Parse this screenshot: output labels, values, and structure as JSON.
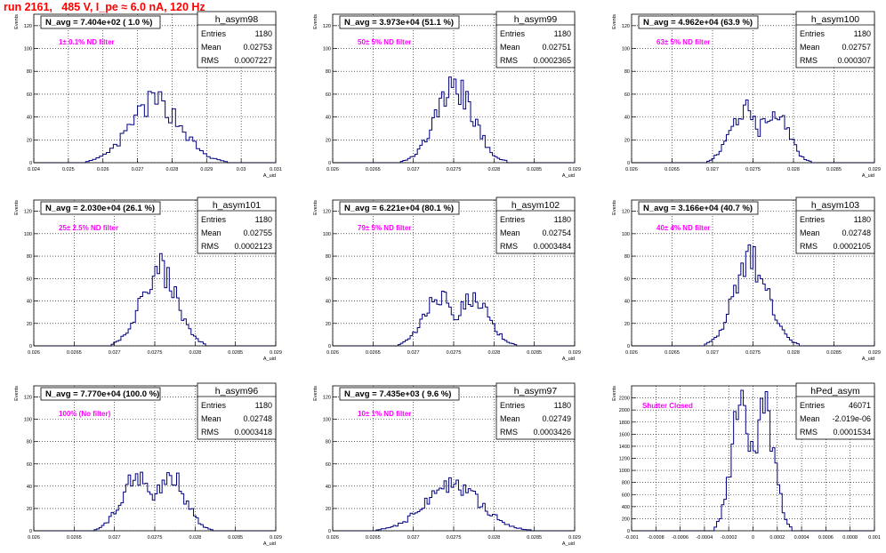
{
  "run_title": "run 2161,   485 V, I_pe ≈ 6.0 nA, 120 Hz",
  "colors": {
    "histogram": "#000080",
    "annotation": "#ff00ff",
    "title": "#ff0000",
    "grid": "#000000"
  },
  "chart_data": [
    {
      "type": "histogram",
      "name": "h_asym98",
      "navg": "N_avg = 7.404e+02 ( 1.0 %)",
      "filter": "1± 0.1% ND filter",
      "stats": [
        [
          "Entries",
          "1180"
        ],
        [
          "Mean",
          "0.02753"
        ],
        [
          "RMS",
          "0.0007227"
        ]
      ],
      "ylabel": "Events",
      "xlabel": "A_uid",
      "xlim": [
        0.024,
        0.031
      ],
      "ylim": [
        0,
        130
      ],
      "yticks": [
        0,
        20,
        40,
        60,
        80,
        100,
        120
      ],
      "xticks": [
        0.024,
        0.025,
        0.026,
        0.027,
        0.028,
        0.029,
        0.03,
        0.031
      ],
      "xtick_labels": [
        "0.024",
        "0.025",
        "0.026",
        "0.027",
        "0.028",
        "0.029",
        "0.03",
        "0.031"
      ],
      "mean": 0.02753,
      "rms": 0.0007227,
      "entries": 1180,
      "peak": 53,
      "bins": 70,
      "shape": "single"
    },
    {
      "type": "histogram",
      "name": "h_asym99",
      "navg": "N_avg = 3.973e+04 (51.1 %)",
      "filter": "50± 5% ND filter",
      "stats": [
        [
          "Entries",
          "1180"
        ],
        [
          "Mean",
          "0.02751"
        ],
        [
          "RMS",
          "0.0002365"
        ]
      ],
      "ylabel": "Events",
      "xlabel": "A_uid",
      "xlim": [
        0.026,
        0.029
      ],
      "ylim": [
        0,
        130
      ],
      "yticks": [
        0,
        20,
        40,
        60,
        80,
        100,
        120
      ],
      "xticks": [
        0.026,
        0.0265,
        0.027,
        0.0275,
        0.028,
        0.0285,
        0.029
      ],
      "xtick_labels": [
        "0.026",
        "0.0265",
        "0.027",
        "0.0275",
        "0.028",
        "0.0285",
        "0.029"
      ],
      "mean": 0.02751,
      "rms": 0.0002365,
      "entries": 1180,
      "peak": 65,
      "bins": 100,
      "shape": "single"
    },
    {
      "type": "histogram",
      "name": "h_asym100",
      "navg": "N_avg = 4.962e+04 (63.9 %)",
      "filter": "63± 5% ND filter",
      "stats": [
        [
          "Entries",
          "1180"
        ],
        [
          "Mean",
          "0.02757"
        ],
        [
          "RMS",
          "0.000307"
        ]
      ],
      "ylabel": "Events",
      "xlabel": "A_uid",
      "xlim": [
        0.026,
        0.029
      ],
      "ylim": [
        0,
        130
      ],
      "yticks": [
        0,
        20,
        40,
        60,
        80,
        100,
        120
      ],
      "xticks": [
        0.026,
        0.0265,
        0.027,
        0.0275,
        0.028,
        0.0285,
        0.029
      ],
      "xtick_labels": [
        "0.026",
        "0.0265",
        "0.027",
        "0.0275",
        "0.028",
        "0.0285",
        "0.029"
      ],
      "mean": 0.02757,
      "rms": 0.000307,
      "entries": 1180,
      "peak": 50,
      "bins": 100,
      "shape": "double"
    },
    {
      "type": "histogram",
      "name": "h_asym101",
      "navg": "N_avg = 2.030e+04 (26.1 %)",
      "filter": "25± 2.5% ND filter",
      "stats": [
        [
          "Entries",
          "1180"
        ],
        [
          "Mean",
          "0.02755"
        ],
        [
          "RMS",
          "0.0002123"
        ]
      ],
      "ylabel": "Events",
      "xlabel": "A_uid",
      "xlim": [
        0.026,
        0.029
      ],
      "ylim": [
        0,
        130
      ],
      "yticks": [
        0,
        20,
        40,
        60,
        80,
        100,
        120
      ],
      "xticks": [
        0.026,
        0.0265,
        0.027,
        0.0275,
        0.028,
        0.0285,
        0.029
      ],
      "xtick_labels": [
        "0.026",
        "0.0265",
        "0.027",
        "0.0275",
        "0.028",
        "0.0285",
        "0.029"
      ],
      "mean": 0.02755,
      "rms": 0.0002123,
      "entries": 1180,
      "peak": 70,
      "bins": 100,
      "shape": "single"
    },
    {
      "type": "histogram",
      "name": "h_asym102",
      "navg": "N_avg = 6.221e+04 (80.1 %)",
      "filter": "79± 5% ND filter",
      "stats": [
        [
          "Entries",
          "1180"
        ],
        [
          "Mean",
          "0.02754"
        ],
        [
          "RMS",
          "0.0003484"
        ]
      ],
      "ylabel": "Events",
      "xlabel": "A_uid",
      "xlim": [
        0.026,
        0.029
      ],
      "ylim": [
        0,
        130
      ],
      "yticks": [
        0,
        20,
        40,
        60,
        80,
        100,
        120
      ],
      "xticks": [
        0.026,
        0.0265,
        0.027,
        0.0275,
        0.028,
        0.0285,
        0.029
      ],
      "xtick_labels": [
        "0.026",
        "0.0265",
        "0.027",
        "0.0275",
        "0.028",
        "0.0285",
        "0.029"
      ],
      "mean": 0.02754,
      "rms": 0.0003484,
      "entries": 1180,
      "peak": 47,
      "bins": 100,
      "shape": "double"
    },
    {
      "type": "histogram",
      "name": "h_asym103",
      "navg": "N_avg = 3.166e+04 (40.7 %)",
      "filter": "40± 4% ND filter",
      "stats": [
        [
          "Entries",
          "1180"
        ],
        [
          "Mean",
          "0.02748"
        ],
        [
          "RMS",
          "0.0002105"
        ]
      ],
      "ylabel": "Events",
      "xlabel": "A_uid",
      "xlim": [
        0.026,
        0.029
      ],
      "ylim": [
        0,
        130
      ],
      "yticks": [
        0,
        20,
        40,
        60,
        80,
        100,
        120
      ],
      "xticks": [
        0.026,
        0.0265,
        0.027,
        0.0275,
        0.028,
        0.0285,
        0.029
      ],
      "xtick_labels": [
        "0.026",
        "0.0265",
        "0.027",
        "0.0275",
        "0.028",
        "0.0285",
        "0.029"
      ],
      "mean": 0.02748,
      "rms": 0.0002105,
      "entries": 1180,
      "peak": 76,
      "bins": 100,
      "shape": "single"
    },
    {
      "type": "histogram",
      "name": "h_asym96",
      "navg": "N_avg = 7.770e+04 (100.0 %)",
      "filter": "100% (No filter)",
      "stats": [
        [
          "Entries",
          "1180"
        ],
        [
          "Mean",
          "0.02748"
        ],
        [
          "RMS",
          "0.0003418"
        ]
      ],
      "ylabel": "Events",
      "xlabel": "A_uid",
      "xlim": [
        0.026,
        0.029
      ],
      "ylim": [
        0,
        130
      ],
      "yticks": [
        0,
        20,
        40,
        60,
        80,
        100,
        120
      ],
      "xticks": [
        0.026,
        0.0265,
        0.027,
        0.0275,
        0.028,
        0.0285,
        0.029
      ],
      "xtick_labels": [
        "0.026",
        "0.0265",
        "0.027",
        "0.0275",
        "0.028",
        "0.0285",
        "0.029"
      ],
      "mean": 0.02748,
      "rms": 0.0003418,
      "entries": 1180,
      "peak": 52,
      "bins": 100,
      "shape": "double"
    },
    {
      "type": "histogram",
      "name": "h_asym97",
      "navg": "N_avg = 7.435e+03 ( 9.6 %)",
      "filter": "10± 1% ND filter",
      "stats": [
        [
          "Entries",
          "1180"
        ],
        [
          "Mean",
          "0.02749"
        ],
        [
          "RMS",
          "0.0003426"
        ]
      ],
      "ylabel": "Events",
      "xlabel": "A_uid",
      "xlim": [
        0.026,
        0.029
      ],
      "ylim": [
        0,
        130
      ],
      "yticks": [
        0,
        20,
        40,
        60,
        80,
        100,
        120
      ],
      "xticks": [
        0.026,
        0.0265,
        0.027,
        0.0275,
        0.028,
        0.0285,
        0.029
      ],
      "xtick_labels": [
        "0.026",
        "0.0265",
        "0.027",
        "0.0275",
        "0.028",
        "0.0285",
        "0.029"
      ],
      "mean": 0.02749,
      "rms": 0.0003426,
      "entries": 1180,
      "peak": 40,
      "bins": 100,
      "shape": "single"
    },
    {
      "type": "histogram",
      "name": "hPed_asym",
      "navg": "",
      "filter": "Shutter Closed",
      "stats": [
        [
          "Entries",
          "46071"
        ],
        [
          "Mean",
          "-2.019e-06"
        ],
        [
          "RMS",
          "0.0001534"
        ]
      ],
      "ylabel": "Events",
      "xlabel": "",
      "xlim": [
        -0.001,
        0.001
      ],
      "ylim": [
        0,
        2400
      ],
      "yticks": [
        0,
        200,
        400,
        600,
        800,
        1000,
        1200,
        1400,
        1600,
        1800,
        2000,
        2200
      ],
      "xticks": [
        -0.001,
        -0.0008,
        -0.0006,
        -0.0004,
        -0.0002,
        0,
        0.0002,
        0.0004,
        0.0006,
        0.0008,
        0.001
      ],
      "xtick_labels": [
        "-0.001",
        "-0.0008",
        "-0.0006",
        "-0.0004",
        "-0.0002",
        "0",
        "0.0002",
        "0.0004",
        "0.0006",
        "0.0008",
        "0.001"
      ],
      "mean": -2.019e-06,
      "rms": 0.0001534,
      "entries": 46071,
      "peak": 2150,
      "bins": 100,
      "shape": "double"
    }
  ]
}
